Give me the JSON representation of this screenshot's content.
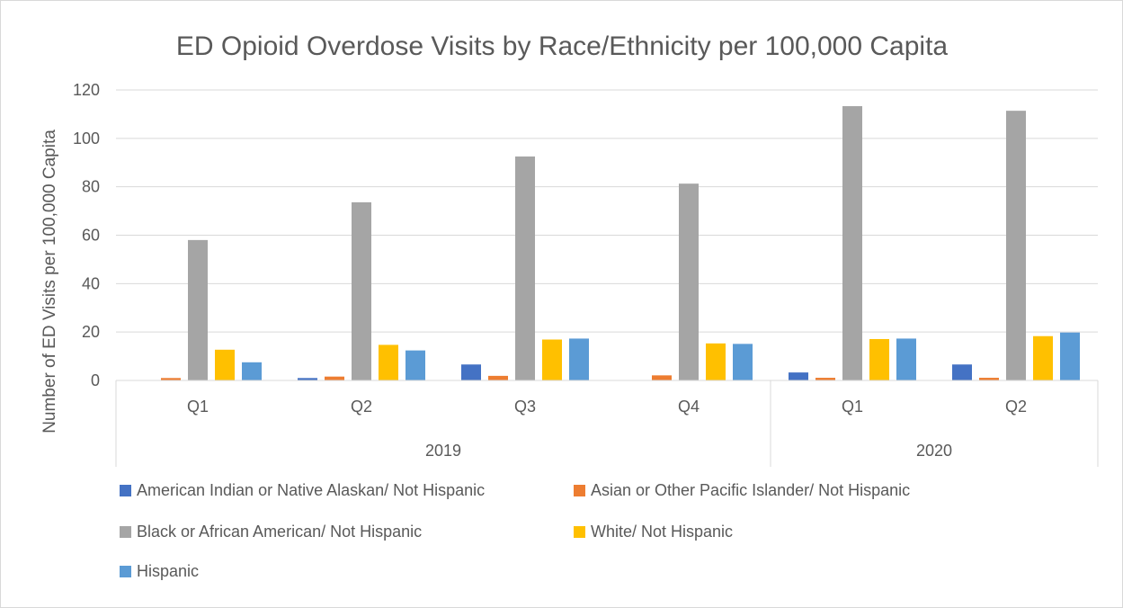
{
  "chart_data": {
    "type": "bar",
    "title": "ED Opioid Overdose Visits by Race/Ethnicity per 100,000 Capita",
    "xlabel": "",
    "ylabel": "Number of ED Visits per 100,000 Capita",
    "ylim": [
      0,
      120
    ],
    "yticks": [
      0,
      20,
      40,
      60,
      80,
      100,
      120
    ],
    "grid": true,
    "legend_position": "bottom",
    "categories": [
      "Q1",
      "Q2",
      "Q3",
      "Q4",
      "Q1",
      "Q2"
    ],
    "category_groups": [
      {
        "label": "2019",
        "count": 4
      },
      {
        "label": "2020",
        "count": 2
      }
    ],
    "series": [
      {
        "name": "American Indian or Native Alaskan/ Not Hispanic",
        "color": "#4472c4",
        "values": [
          0,
          1.0,
          6.6,
          0,
          3.3,
          6.6
        ]
      },
      {
        "name": "Asian or Other Pacific Islander/ Not Hispanic",
        "color": "#ed7d31",
        "values": [
          1.0,
          1.6,
          1.9,
          2.1,
          1.1,
          1.1
        ]
      },
      {
        "name": "Black or African American/ Not Hispanic",
        "color": "#a5a5a5",
        "values": [
          58.0,
          73.6,
          92.5,
          81.3,
          113.3,
          111.4
        ]
      },
      {
        "name": "White/ Not Hispanic",
        "color": "#ffc000",
        "values": [
          12.7,
          14.7,
          16.9,
          15.3,
          17.1,
          18.3
        ]
      },
      {
        "name": "Hispanic",
        "color": "#5b9bd5",
        "values": [
          7.5,
          12.4,
          17.3,
          15.1,
          17.3,
          19.8
        ]
      }
    ]
  }
}
